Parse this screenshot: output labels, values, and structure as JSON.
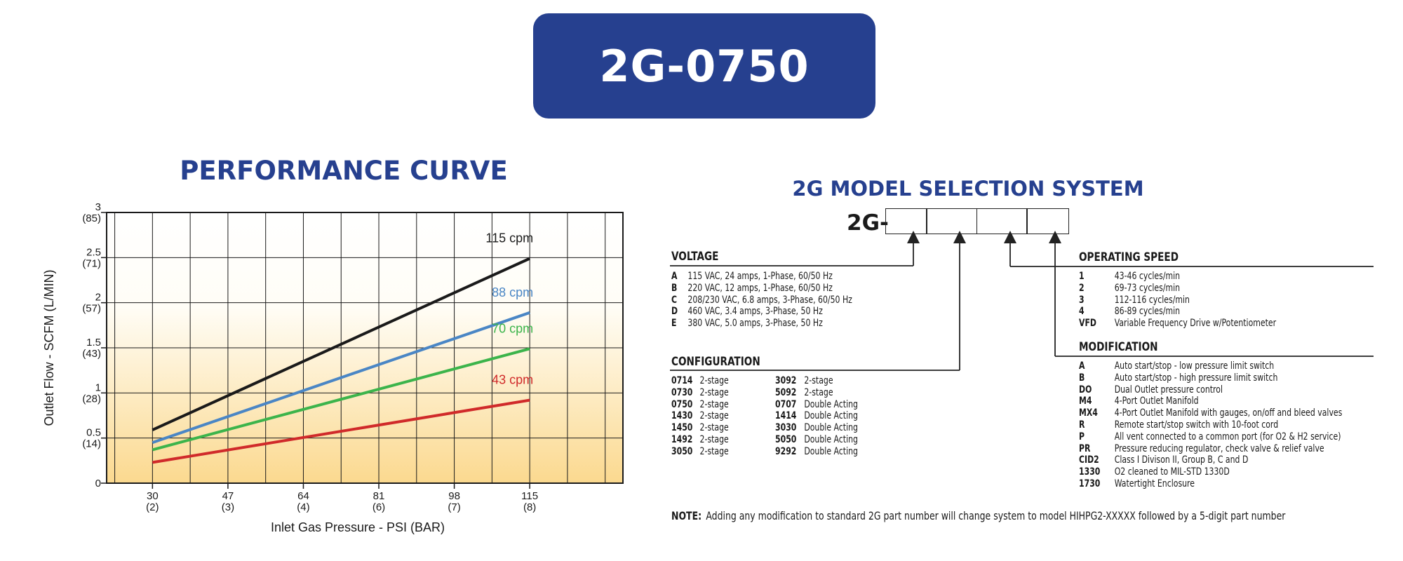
{
  "header": {
    "model": "2G-0750"
  },
  "performance": {
    "title": "PERFORMANCE CURVE"
  },
  "chart_data": {
    "type": "line",
    "xlabel": "Inlet Gas Pressure - PSI (BAR)",
    "ylabel": "Outlet  Flow - SCFM (L/MIN)",
    "xlim": [
      19.67,
      136
    ],
    "ylim": [
      0,
      3
    ],
    "x_ticks": [
      {
        "value": 30,
        "label": "30",
        "sub": "(2)"
      },
      {
        "value": 47,
        "label": "47",
        "sub": "(3)"
      },
      {
        "value": 64,
        "label": "64",
        "sub": "(4)"
      },
      {
        "value": 81,
        "label": "81",
        "sub": "(6)"
      },
      {
        "value": 98,
        "label": "98",
        "sub": "(7)"
      },
      {
        "value": 115,
        "label": "115",
        "sub": "(8)"
      }
    ],
    "y_ticks": [
      {
        "value": 0,
        "label": "0",
        "sub": ""
      },
      {
        "value": 0.5,
        "label": "0.5",
        "sub": "(14)"
      },
      {
        "value": 1,
        "label": "1",
        "sub": "(28)"
      },
      {
        "value": 1.5,
        "label": "1.5",
        "sub": "(43)"
      },
      {
        "value": 2,
        "label": "2",
        "sub": "(57)"
      },
      {
        "value": 2.5,
        "label": "2.5",
        "sub": "(71)"
      },
      {
        "value": 3,
        "label": "3",
        "sub": "(85)"
      }
    ],
    "grid": true,
    "series": [
      {
        "name": "115 cpm",
        "color": "#1a1a1a",
        "x": [
          30,
          115
        ],
        "y": [
          0.59,
          2.49
        ]
      },
      {
        "name": "88 cpm",
        "color": "#4a86c5",
        "x": [
          30,
          115
        ],
        "y": [
          0.45,
          1.89
        ]
      },
      {
        "name": "70 cpm",
        "color": "#3cb44b",
        "x": [
          30,
          115
        ],
        "y": [
          0.37,
          1.49
        ]
      },
      {
        "name": "43 cpm",
        "color": "#d02a2a",
        "x": [
          30,
          115
        ],
        "y": [
          0.23,
          0.92
        ]
      }
    ]
  },
  "selection": {
    "title": "2G MODEL SELECTION SYSTEM",
    "prefix": "2G-",
    "voltage": {
      "heading": "VOLTAGE",
      "items": [
        {
          "code": "A",
          "desc": "115 VAC, 24 amps, 1-Phase, 60/50 Hz"
        },
        {
          "code": "B",
          "desc": "220 VAC,  12 amps, 1-Phase, 60/50 Hz"
        },
        {
          "code": "C",
          "desc": "208/230 VAC,  6.8 amps, 3-Phase, 60/50 Hz"
        },
        {
          "code": "D",
          "desc": "460 VAC,  3.4 amps, 3-Phase, 50 Hz"
        },
        {
          "code": "E",
          "desc": "380 VAC, 5.0 amps, 3-Phase, 50 Hz"
        }
      ]
    },
    "configuration": {
      "heading": "CONFIGURATION",
      "left": [
        {
          "code": "0714",
          "desc": "2-stage"
        },
        {
          "code": "0730",
          "desc": "2-stage"
        },
        {
          "code": "0750",
          "desc": "2-stage"
        },
        {
          "code": "1430",
          "desc": "2-stage"
        },
        {
          "code": "1450",
          "desc": "2-stage"
        },
        {
          "code": "1492",
          "desc": "2-stage"
        },
        {
          "code": "3050",
          "desc": "2-stage"
        }
      ],
      "right": [
        {
          "code": "3092",
          "desc": "2-stage"
        },
        {
          "code": "5092",
          "desc": "2-stage"
        },
        {
          "code": "0707",
          "desc": "Double Acting"
        },
        {
          "code": "1414",
          "desc": "Double Acting"
        },
        {
          "code": "3030",
          "desc": "Double Acting"
        },
        {
          "code": "5050",
          "desc": "Double Acting"
        },
        {
          "code": "9292",
          "desc": "Double Acting"
        }
      ]
    },
    "speed": {
      "heading": "OPERATING SPEED",
      "items": [
        {
          "code": "1",
          "desc": "43-46 cycles/min"
        },
        {
          "code": "2",
          "desc": "69-73 cycles/min"
        },
        {
          "code": "3",
          "desc": "112-116 cycles/min"
        },
        {
          "code": "4",
          "desc": "86-89 cycles/min"
        },
        {
          "code": "VFD",
          "desc": "Variable Frequency Drive w/Potentiometer"
        }
      ]
    },
    "modification": {
      "heading": "MODIFICATION",
      "items": [
        {
          "code": "A",
          "desc": "Auto start/stop - low pressure limit switch"
        },
        {
          "code": "B",
          "desc": "Auto start/stop - high pressure limit switch"
        },
        {
          "code": "DO",
          "desc": "Dual Outlet pressure control"
        },
        {
          "code": "M4",
          "desc": "4-Port Outlet Manifold"
        },
        {
          "code": "MX4",
          "desc": "4-Port Outlet Manifold with gauges, on/off and bleed valves"
        },
        {
          "code": "R",
          "desc": "Remote start/stop switch with 10-foot cord"
        },
        {
          "code": "P",
          "desc": "All vent connected to a common port (for O2 & H2 service)"
        },
        {
          "code": "PR",
          "desc": "Pressure reducing regulator, check valve & relief valve"
        },
        {
          "code": "CID2",
          "desc": "Class I Divison II, Group B, C and D"
        },
        {
          "code": "1330",
          "desc": "O2 cleaned to MIL-STD 1330D"
        },
        {
          "code": "1730",
          "desc": "Watertight Enclosure"
        }
      ]
    },
    "note": {
      "label": "NOTE:",
      "text": "Adding any modification to standard 2G part number will change system to model HIHPG2-XXXXX followed by a 5-digit part number"
    }
  }
}
